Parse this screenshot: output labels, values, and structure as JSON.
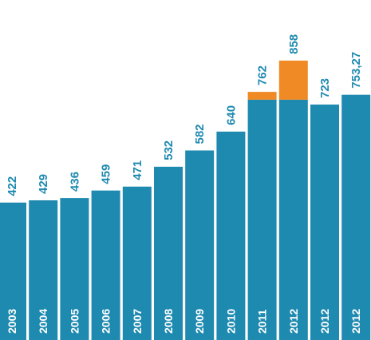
{
  "chart_data": {
    "type": "bar",
    "categories": [
      "2003",
      "2004",
      "2005",
      "2006",
      "2007",
      "2008",
      "2009",
      "2010",
      "2011",
      "2012",
      "2012",
      "2012"
    ],
    "value_labels": [
      "422",
      "429",
      "436",
      "459",
      "471",
      "532",
      "582",
      "640",
      "762",
      "858",
      "723",
      "753,27"
    ],
    "series": [
      {
        "values": [
          422,
          429,
          436,
          459,
          471,
          532,
          582,
          640,
          738,
          738,
          723,
          753.27
        ],
        "color": "#1f8ab0"
      },
      {
        "values": [
          0,
          0,
          0,
          0,
          0,
          0,
          0,
          0,
          24,
          120,
          0,
          0
        ],
        "color": "#f08a24"
      }
    ],
    "ylim": [
      0,
      858
    ],
    "grid": false,
    "legend": "none"
  }
}
